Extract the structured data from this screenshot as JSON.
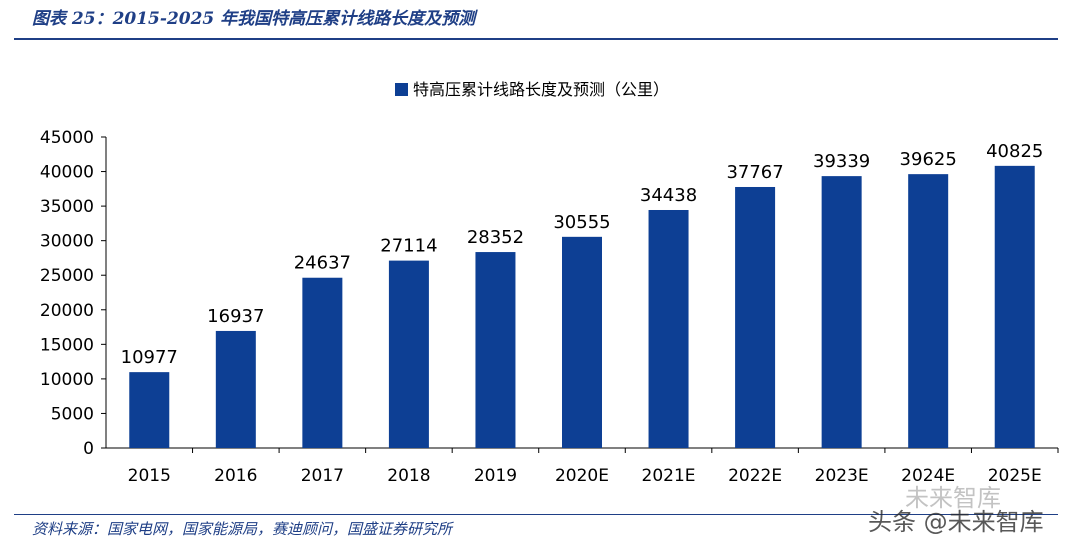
{
  "header": {
    "title": "图表 25：2015-2025 年我国特高压累计线路长度及预测"
  },
  "footer": {
    "source": "资料来源：国家电网，国家能源局，赛迪顾问，国盛证券研究所",
    "watermark": "头条 @未来智库",
    "watermark_ghost": "未来智库"
  },
  "colors": {
    "accent": "#1f3f86",
    "bar": "#0d3f94"
  },
  "chart_data": {
    "type": "bar",
    "categories": [
      "2015",
      "2016",
      "2017",
      "2018",
      "2019",
      "2020E",
      "2021E",
      "2022E",
      "2023E",
      "2024E",
      "2025E"
    ],
    "series": [
      {
        "name": "特高压累计线路长度及预测（公里）",
        "values": [
          10977,
          16937,
          24637,
          27114,
          28352,
          30555,
          34438,
          37767,
          39339,
          39625,
          40825
        ]
      }
    ],
    "y_ticks": [
      "0",
      "5000",
      "10000",
      "15000",
      "20000",
      "25000",
      "30000",
      "35000",
      "40000",
      "45000"
    ],
    "ylim": [
      0,
      45000
    ],
    "legend_position": "top-center",
    "grid": false,
    "data_labels": true
  }
}
